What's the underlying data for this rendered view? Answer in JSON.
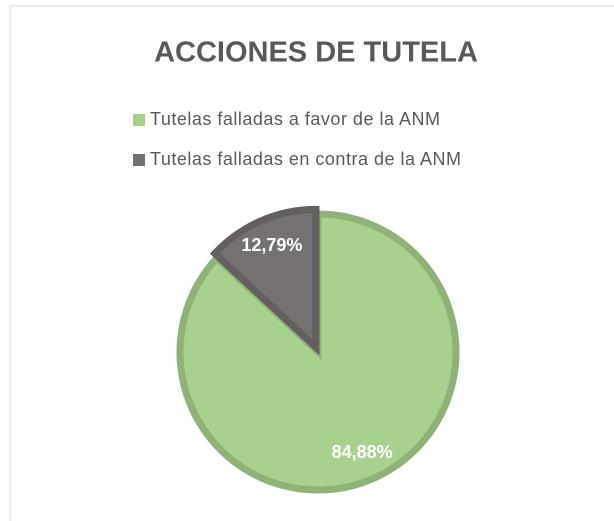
{
  "chart_data": {
    "type": "pie",
    "title": "ACCIONES DE TUTELA",
    "categories": [
      "Tutelas falladas a favor de la ANM",
      "Tutelas falladas en contra de la ANM"
    ],
    "values": [
      84.88,
      12.79
    ],
    "value_labels": [
      "84,88%",
      "12,79%"
    ],
    "colors": [
      "#a9d18e",
      "#767171"
    ],
    "legend": "top"
  }
}
